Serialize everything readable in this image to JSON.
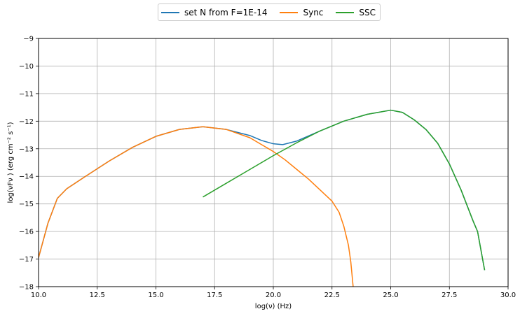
{
  "chart_data": {
    "type": "line",
    "xlabel": "log(ν)  (Hz)",
    "ylabel": "log(νFν )  (erg cm⁻²  s⁻¹)",
    "xlim": [
      10.0,
      30.0
    ],
    "ylim": [
      -18,
      -9
    ],
    "xticks": [
      "10.0",
      "12.5",
      "15.0",
      "17.5",
      "20.0",
      "22.5",
      "25.0",
      "27.5",
      "30.0"
    ],
    "yticks": [
      "−9",
      "−10",
      "−11",
      "−12",
      "−13",
      "−14",
      "−15",
      "−16",
      "−17",
      "−18"
    ],
    "grid": true,
    "legend_position": "top-center",
    "series": [
      {
        "name": "set N from F=1E-14",
        "color": "#1f77b4",
        "x": [
          10.0,
          10.4,
          10.8,
          11.2,
          12.0,
          13.0,
          14.0,
          15.0,
          16.0,
          17.0,
          18.0,
          19.0,
          19.5,
          20.0,
          20.4,
          21.0,
          22.0,
          23.0,
          24.0,
          25.0,
          25.5,
          26.0,
          26.5,
          27.0,
          27.5,
          28.0,
          28.5,
          28.7,
          29.0
        ],
        "y": [
          -16.95,
          -15.7,
          -14.8,
          -14.45,
          -14.0,
          -13.45,
          -12.95,
          -12.55,
          -12.3,
          -12.2,
          -12.3,
          -12.52,
          -12.7,
          -12.82,
          -12.85,
          -12.72,
          -12.35,
          -12.0,
          -11.75,
          -11.6,
          -11.68,
          -11.95,
          -12.3,
          -12.8,
          -13.55,
          -14.5,
          -15.6,
          -16.0,
          -17.4
        ]
      },
      {
        "name": "Sync",
        "color": "#ff7f0e",
        "x": [
          10.0,
          10.4,
          10.8,
          11.2,
          12.0,
          13.0,
          14.0,
          15.0,
          16.0,
          17.0,
          18.0,
          19.0,
          19.5,
          20.0,
          20.5,
          21.0,
          21.5,
          22.0,
          22.5,
          22.8,
          23.0,
          23.2,
          23.3,
          23.4
        ],
        "y": [
          -16.95,
          -15.7,
          -14.8,
          -14.45,
          -14.0,
          -13.45,
          -12.95,
          -12.55,
          -12.3,
          -12.2,
          -12.3,
          -12.6,
          -12.85,
          -13.1,
          -13.4,
          -13.75,
          -14.1,
          -14.5,
          -14.9,
          -15.3,
          -15.8,
          -16.5,
          -17.1,
          -18.0
        ]
      },
      {
        "name": "SSC",
        "color": "#2ca02c",
        "x": [
          17.0,
          18.0,
          19.0,
          20.0,
          21.0,
          22.0,
          23.0,
          24.0,
          25.0,
          25.5,
          26.0,
          26.5,
          27.0,
          27.5,
          28.0,
          28.5,
          28.7,
          29.0
        ],
        "y": [
          -14.75,
          -14.25,
          -13.75,
          -13.25,
          -12.78,
          -12.35,
          -12.0,
          -11.75,
          -11.6,
          -11.68,
          -11.95,
          -12.3,
          -12.8,
          -13.55,
          -14.5,
          -15.6,
          -16.0,
          -17.4
        ]
      }
    ]
  }
}
